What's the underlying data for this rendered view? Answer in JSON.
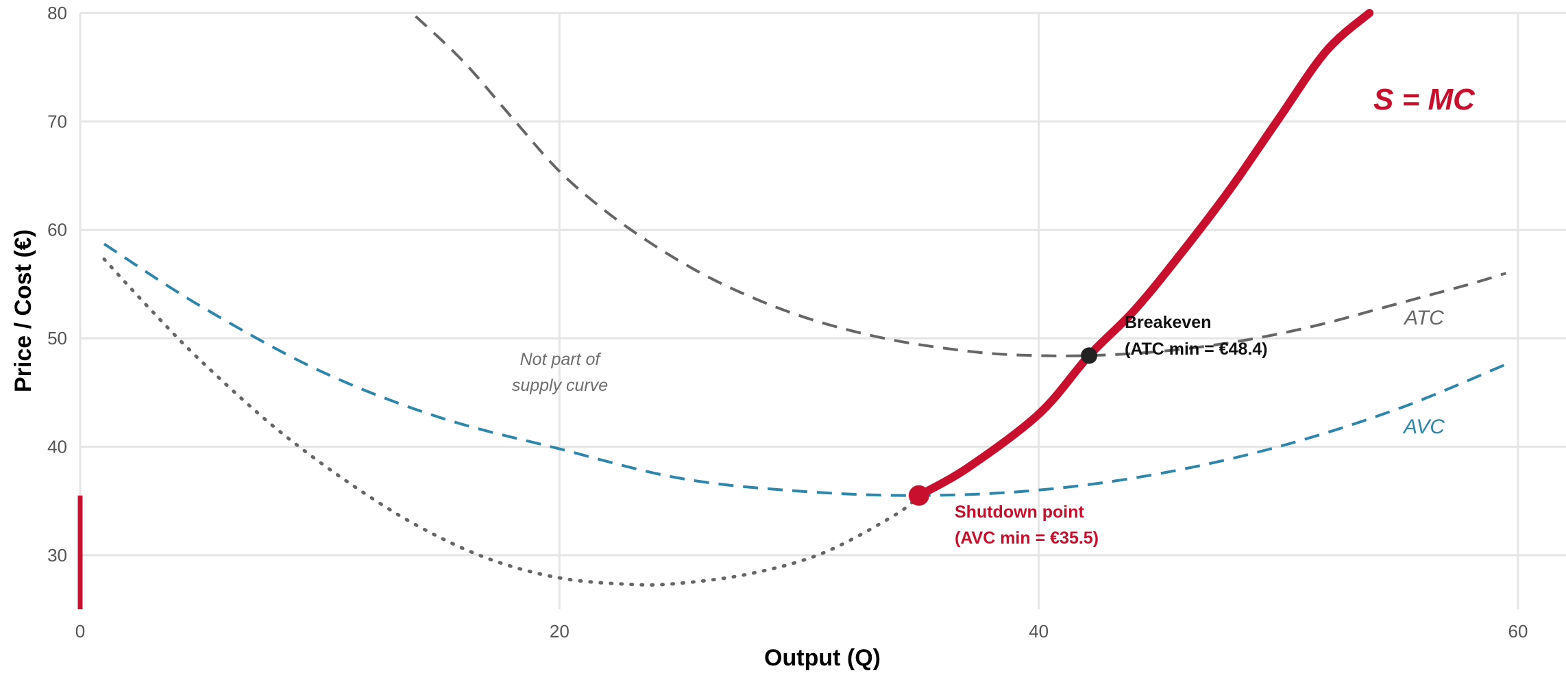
{
  "chart_data": {
    "type": "line",
    "xlabel": "Output (Q)",
    "ylabel": "Price / Cost (€)",
    "xlim": [
      0,
      60
    ],
    "ylim": [
      25,
      80
    ],
    "xticks": [
      "0",
      "20",
      "40",
      "60"
    ],
    "yticks": [
      "30",
      "40",
      "50",
      "60",
      "70",
      "80"
    ],
    "grid": true,
    "series": [
      {
        "name": "ATC",
        "style": "dashed",
        "color": "#666666",
        "x": [
          14,
          16,
          18,
          20,
          22,
          24,
          26,
          28,
          30,
          32,
          34,
          36,
          38,
          40,
          42,
          44,
          46,
          48,
          50,
          52,
          54,
          56,
          58,
          59.5
        ],
        "y": [
          79.7,
          75.5,
          70.4,
          65.4,
          61.6,
          58.5,
          55.9,
          53.8,
          52.1,
          50.8,
          49.8,
          49.1,
          48.6,
          48.4,
          48.4,
          48.6,
          49.0,
          49.6,
          50.4,
          51.4,
          52.6,
          53.8,
          55.0,
          56.0
        ]
      },
      {
        "name": "AVC",
        "style": "dashed",
        "color": "#2e86ab",
        "x": [
          1,
          5,
          10,
          15,
          20,
          25,
          30,
          35,
          40,
          45,
          50,
          55,
          59.5
        ],
        "y": [
          58.7,
          53.0,
          47.0,
          42.7,
          39.8,
          37.1,
          35.9,
          35.5,
          36.0,
          37.5,
          40.0,
          43.5,
          47.6
        ]
      },
      {
        "name": "MC",
        "style": "dotted",
        "color": "#666666",
        "x": [
          1,
          3,
          5,
          8,
          11,
          14,
          17,
          20,
          23,
          25,
          28,
          31,
          34,
          35
        ],
        "y": [
          57.3,
          52.5,
          48.0,
          42.0,
          37.0,
          32.8,
          29.7,
          27.9,
          27.3,
          27.4,
          28.3,
          30.2,
          33.7,
          35.5
        ]
      },
      {
        "name": "S = MC",
        "style": "solid",
        "color": "#c8102e",
        "x": [
          35,
          37,
          40,
          42.1,
          44,
          46,
          48,
          50,
          52,
          53.8
        ],
        "y": [
          35.5,
          38.0,
          43.0,
          48.4,
          52.6,
          58.0,
          63.8,
          70.2,
          76.5,
          80.0
        ]
      }
    ],
    "vertical_segment": {
      "x": 0,
      "y_from": 25,
      "y_to": 35.5,
      "color": "#c8102e"
    },
    "points": [
      {
        "name": "Shutdown point",
        "x": 35,
        "y": 35.5,
        "color": "#c8102e"
      },
      {
        "name": "Breakeven",
        "x": 42.1,
        "y": 48.4,
        "color": "#222222"
      }
    ],
    "annotations": {
      "supply_label": "S = MC",
      "atc_label": "ATC",
      "avc_label": "AVC",
      "not_part_line1": "Not part of",
      "not_part_line2": "supply curve",
      "breakeven_line1": "Breakeven",
      "breakeven_line2": "(ATC min = €48.4)",
      "shutdown_line1": "Shutdown point",
      "shutdown_line2": "(AVC min = €35.5)"
    },
    "colors": {
      "supply": "#c8102e",
      "avc": "#2e86ab",
      "atc": "#666666",
      "grid": "#e5e5e5"
    }
  }
}
